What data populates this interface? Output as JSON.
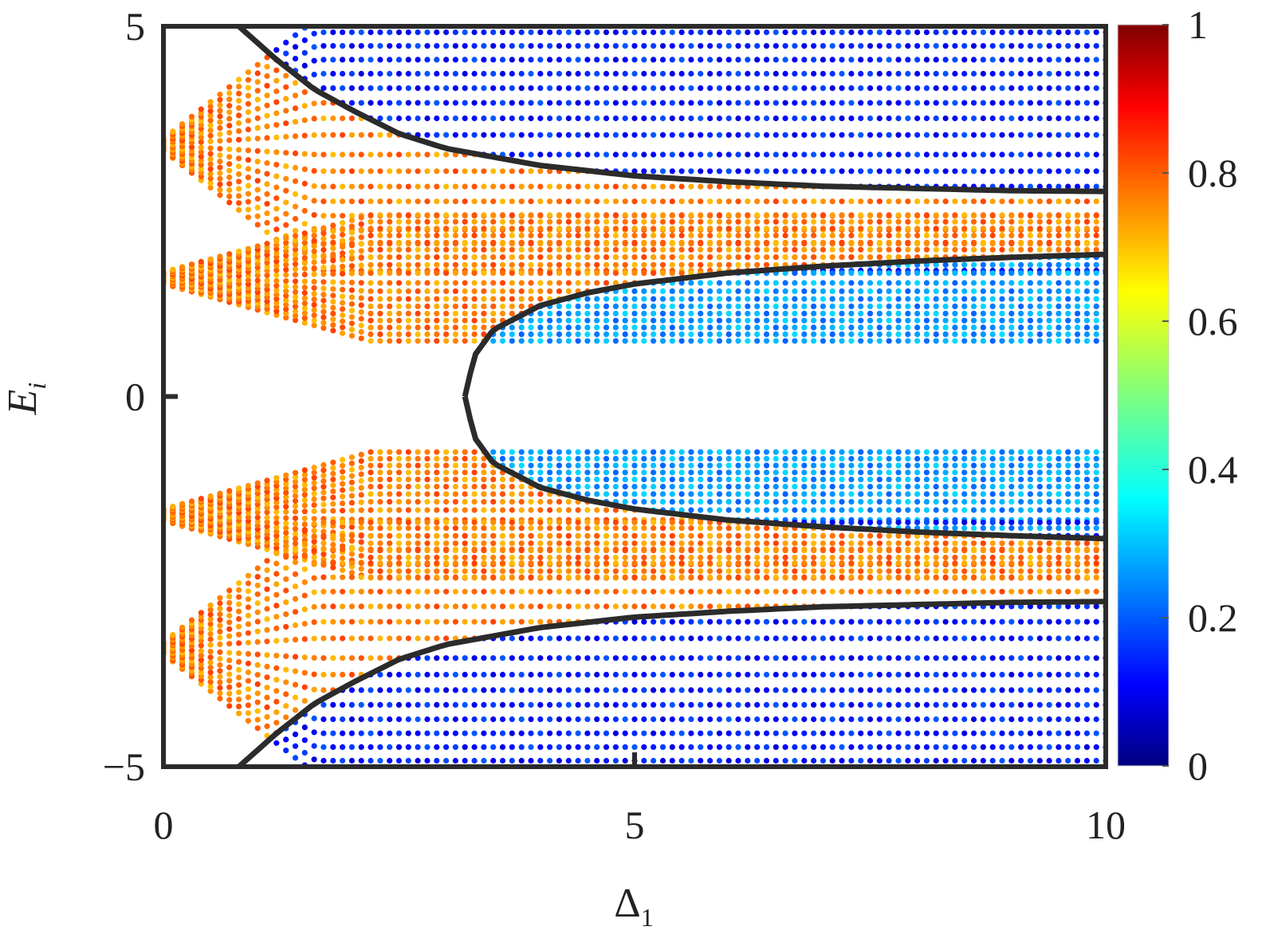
{
  "chart_data": {
    "type": "scatter",
    "title": "",
    "xlabel": "Δ",
    "xlabel_sub": "1",
    "ylabel": "E",
    "ylabel_sub": "i",
    "xlim": [
      0,
      10
    ],
    "ylim": [
      -5,
      5
    ],
    "x_ticks": [
      0,
      5,
      10
    ],
    "x_tick_labels": [
      "0",
      "5",
      "10"
    ],
    "y_ticks": [
      -5,
      0,
      5
    ],
    "y_tick_labels": [
      "−5",
      "0",
      "5"
    ],
    "grid": false,
    "colorbar": {
      "colormap": "jet",
      "range": [
        0,
        1
      ],
      "ticks": [
        0,
        0.2,
        0.4,
        0.6,
        0.8,
        1
      ],
      "tick_labels": [
        "0",
        "0.2",
        "0.4",
        "0.6",
        "0.8",
        "1"
      ]
    },
    "band_edge_curves": [
      {
        "branch": "upper-outer",
        "x": [
          0.8,
          1.2,
          1.6,
          2.0,
          2.5,
          3.0,
          4.0,
          5.0,
          6.0,
          7.0,
          8.0,
          9.0,
          10.0
        ],
        "y": [
          5.0,
          4.55,
          4.15,
          3.87,
          3.55,
          3.35,
          3.12,
          2.98,
          2.9,
          2.84,
          2.81,
          2.78,
          2.77
        ]
      },
      {
        "branch": "upper-inner",
        "x": [
          3.2,
          3.3,
          3.5,
          4.0,
          4.5,
          5.0,
          6.0,
          7.0,
          8.0,
          9.0,
          10.0
        ],
        "y": [
          0.0,
          0.55,
          0.9,
          1.23,
          1.4,
          1.52,
          1.67,
          1.76,
          1.83,
          1.88,
          1.92
        ]
      },
      {
        "branch": "lower-inner",
        "x": [
          3.2,
          3.3,
          3.5,
          4.0,
          4.5,
          5.0,
          6.0,
          7.0,
          8.0,
          9.0,
          10.0
        ],
        "y": [
          0.0,
          -0.55,
          -0.9,
          -1.23,
          -1.4,
          -1.52,
          -1.67,
          -1.76,
          -1.83,
          -1.88,
          -1.92
        ]
      },
      {
        "branch": "lower-outer",
        "x": [
          0.8,
          1.2,
          1.6,
          2.0,
          2.5,
          3.0,
          4.0,
          5.0,
          6.0,
          7.0,
          8.0,
          9.0,
          10.0
        ],
        "y": [
          -5.0,
          -4.55,
          -4.15,
          -3.87,
          -3.55,
          -3.35,
          -3.12,
          -2.98,
          -2.9,
          -2.84,
          -2.81,
          -2.78,
          -2.77
        ]
      }
    ],
    "scatter_bands": [
      {
        "e0": 3.4,
        "x_start": 0,
        "x_end": 10,
        "spread_rate": 1.0,
        "spread_max": 1.7,
        "value_inside": 0.75,
        "value_outside": 0.15
      },
      {
        "e0": 1.6,
        "x_start": 0,
        "x_end": 10,
        "spread_rate": 0.35,
        "spread_max": 0.85,
        "value_inside": 0.75,
        "value_outside": 0.28
      },
      {
        "e0": -1.6,
        "x_start": 0,
        "x_end": 10,
        "spread_rate": 0.35,
        "spread_max": 0.85,
        "value_inside": 0.75,
        "value_outside": 0.28
      },
      {
        "e0": -3.4,
        "x_start": 0,
        "x_end": 10,
        "spread_rate": 1.0,
        "spread_max": 1.7,
        "value_inside": 0.75,
        "value_outside": 0.15
      }
    ]
  }
}
